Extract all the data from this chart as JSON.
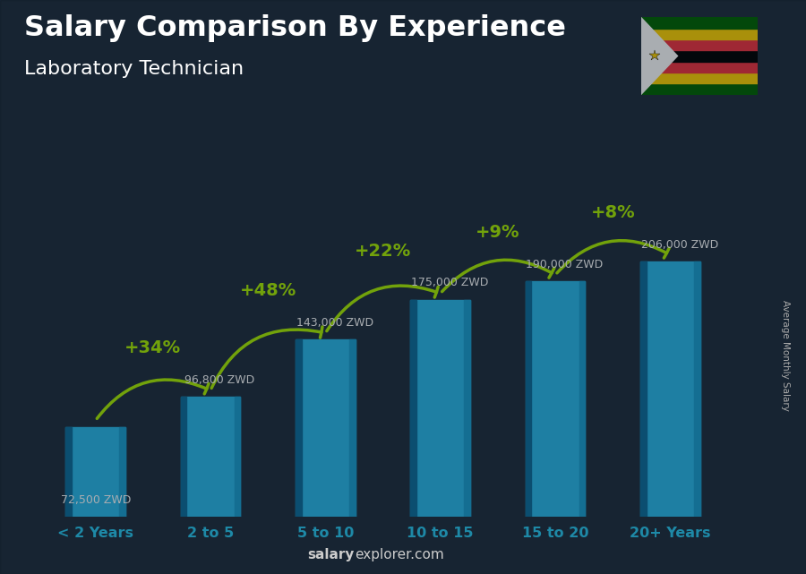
{
  "title": "Salary Comparison By Experience",
  "subtitle": "Laboratory Technician",
  "categories": [
    "< 2 Years",
    "2 to 5",
    "5 to 10",
    "10 to 15",
    "15 to 20",
    "20+ Years"
  ],
  "values": [
    72500,
    96800,
    143000,
    175000,
    190000,
    206000
  ],
  "labels": [
    "72,500 ZWD",
    "96,800 ZWD",
    "143,000 ZWD",
    "175,000 ZWD",
    "190,000 ZWD",
    "206,000 ZWD"
  ],
  "pct_changes": [
    null,
    "+34%",
    "+48%",
    "+22%",
    "+9%",
    "+8%"
  ],
  "bar_color_main": "#29b8ea",
  "bar_color_dark": "#0d6e9c",
  "bar_color_right": "#1a9ecf",
  "bg_color": "#1e2d3d",
  "title_color": "#ffffff",
  "subtitle_color": "#ffffff",
  "label_color": "#ffffff",
  "pct_color": "#aaee00",
  "xticklabel_color": "#29c8f0",
  "arrow_color": "#aaee00",
  "ylabel_text": "Average Monthly Salary",
  "footer_salary": "salary",
  "footer_rest": "explorer.com",
  "ylim": [
    0,
    250000
  ],
  "bar_width": 0.52
}
